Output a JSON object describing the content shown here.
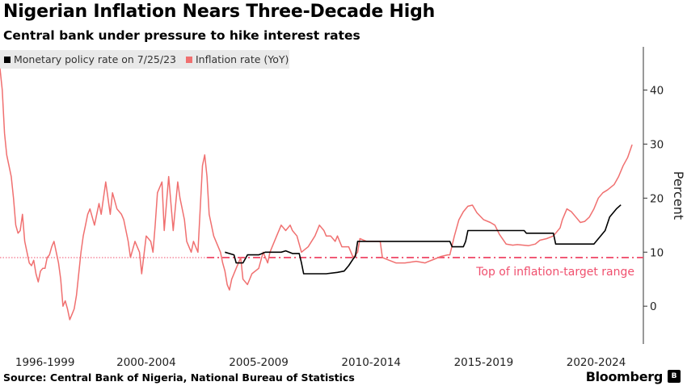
{
  "header": {
    "title": "Nigerian Inflation Nears Three-Decade High",
    "subtitle": "Central bank under pressure to hike interest rates"
  },
  "footer": {
    "source": "Source: Central Bank of Nigeria, National Bureau of Statistics",
    "brand": "Bloomberg",
    "brand_mark": "B"
  },
  "chart_data": {
    "type": "line",
    "title": "Nigerian Inflation Nears Three-Decade High",
    "subtitle": "Central bank under pressure to hike interest rates",
    "ylabel": "Percent",
    "xlabel": "",
    "x_tick_labels": [
      "1996-1999",
      "2000-2004",
      "2005-2009",
      "2010-2014",
      "2015-2019",
      "2020-2024"
    ],
    "x_tick_years": [
      1998,
      2002.5,
      2007.5,
      2012.5,
      2017.5,
      2022.5
    ],
    "xlim": [
      1996,
      2024.6
    ],
    "ylim": [
      -7,
      48
    ],
    "y_ticks": [
      0,
      10,
      20,
      30,
      40
    ],
    "y_axis_side": "right",
    "grid": false,
    "legend_placement": "top-left",
    "colors": {
      "policy": "#000000",
      "inflation": "#f07070",
      "target": "#f0506e"
    },
    "series": [
      {
        "name": "Monetary policy rate on 7/25/23",
        "color": "#000000",
        "points": [
          [
            2006.0,
            10
          ],
          [
            2006.4,
            9.5
          ],
          [
            2006.5,
            8
          ],
          [
            2006.8,
            8
          ],
          [
            2007.0,
            9.5
          ],
          [
            2007.5,
            9.5
          ],
          [
            2007.8,
            10
          ],
          [
            2008.5,
            10
          ],
          [
            2008.7,
            10.25
          ],
          [
            2009.0,
            9.75
          ],
          [
            2009.3,
            9.75
          ],
          [
            2009.4,
            8
          ],
          [
            2009.5,
            6
          ],
          [
            2010.5,
            6
          ],
          [
            2011.0,
            6.25
          ],
          [
            2011.3,
            6.5
          ],
          [
            2011.5,
            7.5
          ],
          [
            2011.7,
            8.75
          ],
          [
            2011.8,
            9.25
          ],
          [
            2011.9,
            12
          ],
          [
            2016.0,
            12
          ],
          [
            2016.1,
            11
          ],
          [
            2016.6,
            11
          ],
          [
            2016.7,
            12
          ],
          [
            2016.8,
            14
          ],
          [
            2019.3,
            14
          ],
          [
            2019.4,
            13.5
          ],
          [
            2020.6,
            13.5
          ],
          [
            2020.7,
            11.5
          ],
          [
            2022.4,
            11.5
          ],
          [
            2022.7,
            13
          ],
          [
            2022.9,
            14
          ],
          [
            2023.1,
            16.5
          ],
          [
            2023.4,
            18
          ],
          [
            2023.6,
            18.75
          ]
        ]
      },
      {
        "name": "Inflation rate (YoY)",
        "color": "#f07070",
        "points": [
          [
            1996.0,
            44
          ],
          [
            1996.1,
            40
          ],
          [
            1996.2,
            32
          ],
          [
            1996.3,
            28
          ],
          [
            1996.5,
            24
          ],
          [
            1996.6,
            20
          ],
          [
            1996.7,
            15
          ],
          [
            1996.8,
            13.5
          ],
          [
            1996.9,
            14
          ],
          [
            1997.0,
            17
          ],
          [
            1997.1,
            12
          ],
          [
            1997.2,
            10
          ],
          [
            1997.3,
            8
          ],
          [
            1997.4,
            7.5
          ],
          [
            1997.5,
            8.5
          ],
          [
            1997.6,
            6
          ],
          [
            1997.7,
            4.5
          ],
          [
            1997.8,
            6.5
          ],
          [
            1997.9,
            7
          ],
          [
            1998.0,
            7
          ],
          [
            1998.1,
            9
          ],
          [
            1998.2,
            9.5
          ],
          [
            1998.3,
            11
          ],
          [
            1998.4,
            12
          ],
          [
            1998.5,
            10
          ],
          [
            1998.6,
            8
          ],
          [
            1998.7,
            5
          ],
          [
            1998.8,
            0
          ],
          [
            1998.9,
            1
          ],
          [
            1999.0,
            -0.5
          ],
          [
            1999.1,
            -2.5
          ],
          [
            1999.2,
            -1.5
          ],
          [
            1999.3,
            -0.5
          ],
          [
            1999.4,
            2
          ],
          [
            1999.5,
            6
          ],
          [
            1999.6,
            10
          ],
          [
            1999.7,
            13
          ],
          [
            1999.8,
            15
          ],
          [
            1999.9,
            17
          ],
          [
            2000.0,
            18
          ],
          [
            2000.2,
            15
          ],
          [
            2000.4,
            19
          ],
          [
            2000.5,
            17
          ],
          [
            2000.7,
            23
          ],
          [
            2000.9,
            17
          ],
          [
            2001.0,
            21
          ],
          [
            2001.2,
            18
          ],
          [
            2001.4,
            17
          ],
          [
            2001.5,
            16
          ],
          [
            2001.7,
            12
          ],
          [
            2001.8,
            9
          ],
          [
            2002.0,
            12
          ],
          [
            2002.2,
            10
          ],
          [
            2002.3,
            6
          ],
          [
            2002.5,
            13
          ],
          [
            2002.7,
            12
          ],
          [
            2002.8,
            10
          ],
          [
            2002.9,
            15
          ],
          [
            2003.0,
            21
          ],
          [
            2003.2,
            23
          ],
          [
            2003.3,
            14
          ],
          [
            2003.5,
            24
          ],
          [
            2003.7,
            14
          ],
          [
            2003.9,
            23
          ],
          [
            2004.0,
            20
          ],
          [
            2004.2,
            16
          ],
          [
            2004.3,
            12
          ],
          [
            2004.5,
            10
          ],
          [
            2004.6,
            12
          ],
          [
            2004.7,
            11
          ],
          [
            2004.8,
            10
          ],
          [
            2004.9,
            18
          ],
          [
            2005.0,
            26
          ],
          [
            2005.1,
            28
          ],
          [
            2005.2,
            24
          ],
          [
            2005.3,
            17
          ],
          [
            2005.5,
            13
          ],
          [
            2005.6,
            12
          ],
          [
            2005.8,
            10
          ],
          [
            2005.9,
            8
          ],
          [
            2006.0,
            6.5
          ],
          [
            2006.1,
            4
          ],
          [
            2006.2,
            3
          ],
          [
            2006.3,
            5
          ],
          [
            2006.5,
            7
          ],
          [
            2006.7,
            9
          ],
          [
            2006.8,
            5
          ],
          [
            2007.0,
            4
          ],
          [
            2007.2,
            6
          ],
          [
            2007.5,
            7
          ],
          [
            2007.7,
            10
          ],
          [
            2007.9,
            8
          ],
          [
            2008.0,
            10
          ],
          [
            2008.3,
            13
          ],
          [
            2008.5,
            15
          ],
          [
            2008.7,
            14
          ],
          [
            2008.9,
            15
          ],
          [
            2009.0,
            14
          ],
          [
            2009.2,
            13
          ],
          [
            2009.4,
            10
          ],
          [
            2009.7,
            11
          ],
          [
            2010.0,
            13
          ],
          [
            2010.2,
            15
          ],
          [
            2010.4,
            14
          ],
          [
            2010.5,
            13
          ],
          [
            2010.7,
            13
          ],
          [
            2010.9,
            12
          ],
          [
            2011.0,
            13
          ],
          [
            2011.2,
            11
          ],
          [
            2011.5,
            11
          ],
          [
            2011.7,
            9
          ],
          [
            2011.9,
            10
          ],
          [
            2012.0,
            12.5
          ],
          [
            2012.3,
            12
          ],
          [
            2012.6,
            12
          ],
          [
            2012.9,
            12
          ],
          [
            2013.0,
            9
          ],
          [
            2013.3,
            8.5
          ],
          [
            2013.6,
            8
          ],
          [
            2014.0,
            8
          ],
          [
            2014.5,
            8.3
          ],
          [
            2014.9,
            8
          ],
          [
            2015.0,
            8.2
          ],
          [
            2015.3,
            8.7
          ],
          [
            2015.6,
            9.2
          ],
          [
            2015.9,
            9.5
          ],
          [
            2016.0,
            9.5
          ],
          [
            2016.2,
            13
          ],
          [
            2016.4,
            16
          ],
          [
            2016.6,
            17.5
          ],
          [
            2016.8,
            18.5
          ],
          [
            2017.0,
            18.7
          ],
          [
            2017.2,
            17.3
          ],
          [
            2017.5,
            16
          ],
          [
            2017.8,
            15.5
          ],
          [
            2018.0,
            15
          ],
          [
            2018.2,
            13.3
          ],
          [
            2018.5,
            11.5
          ],
          [
            2018.8,
            11.3
          ],
          [
            2019.0,
            11.4
          ],
          [
            2019.5,
            11.2
          ],
          [
            2019.8,
            11.5
          ],
          [
            2020.0,
            12.2
          ],
          [
            2020.3,
            12.5
          ],
          [
            2020.6,
            13
          ],
          [
            2020.9,
            14.5
          ],
          [
            2021.0,
            16
          ],
          [
            2021.2,
            18
          ],
          [
            2021.4,
            17.5
          ],
          [
            2021.6,
            16.5
          ],
          [
            2021.8,
            15.5
          ],
          [
            2022.0,
            15.7
          ],
          [
            2022.2,
            16.5
          ],
          [
            2022.4,
            18
          ],
          [
            2022.6,
            20
          ],
          [
            2022.8,
            21
          ],
          [
            2023.0,
            21.5
          ],
          [
            2023.3,
            22.5
          ],
          [
            2023.5,
            24
          ],
          [
            2023.7,
            26
          ],
          [
            2023.9,
            27.5
          ],
          [
            2024.1,
            29.9
          ]
        ]
      }
    ],
    "reference_line": {
      "value": 9,
      "label": "Top of inflation-target range",
      "color": "#f0506e",
      "style": "dash-dot"
    }
  }
}
